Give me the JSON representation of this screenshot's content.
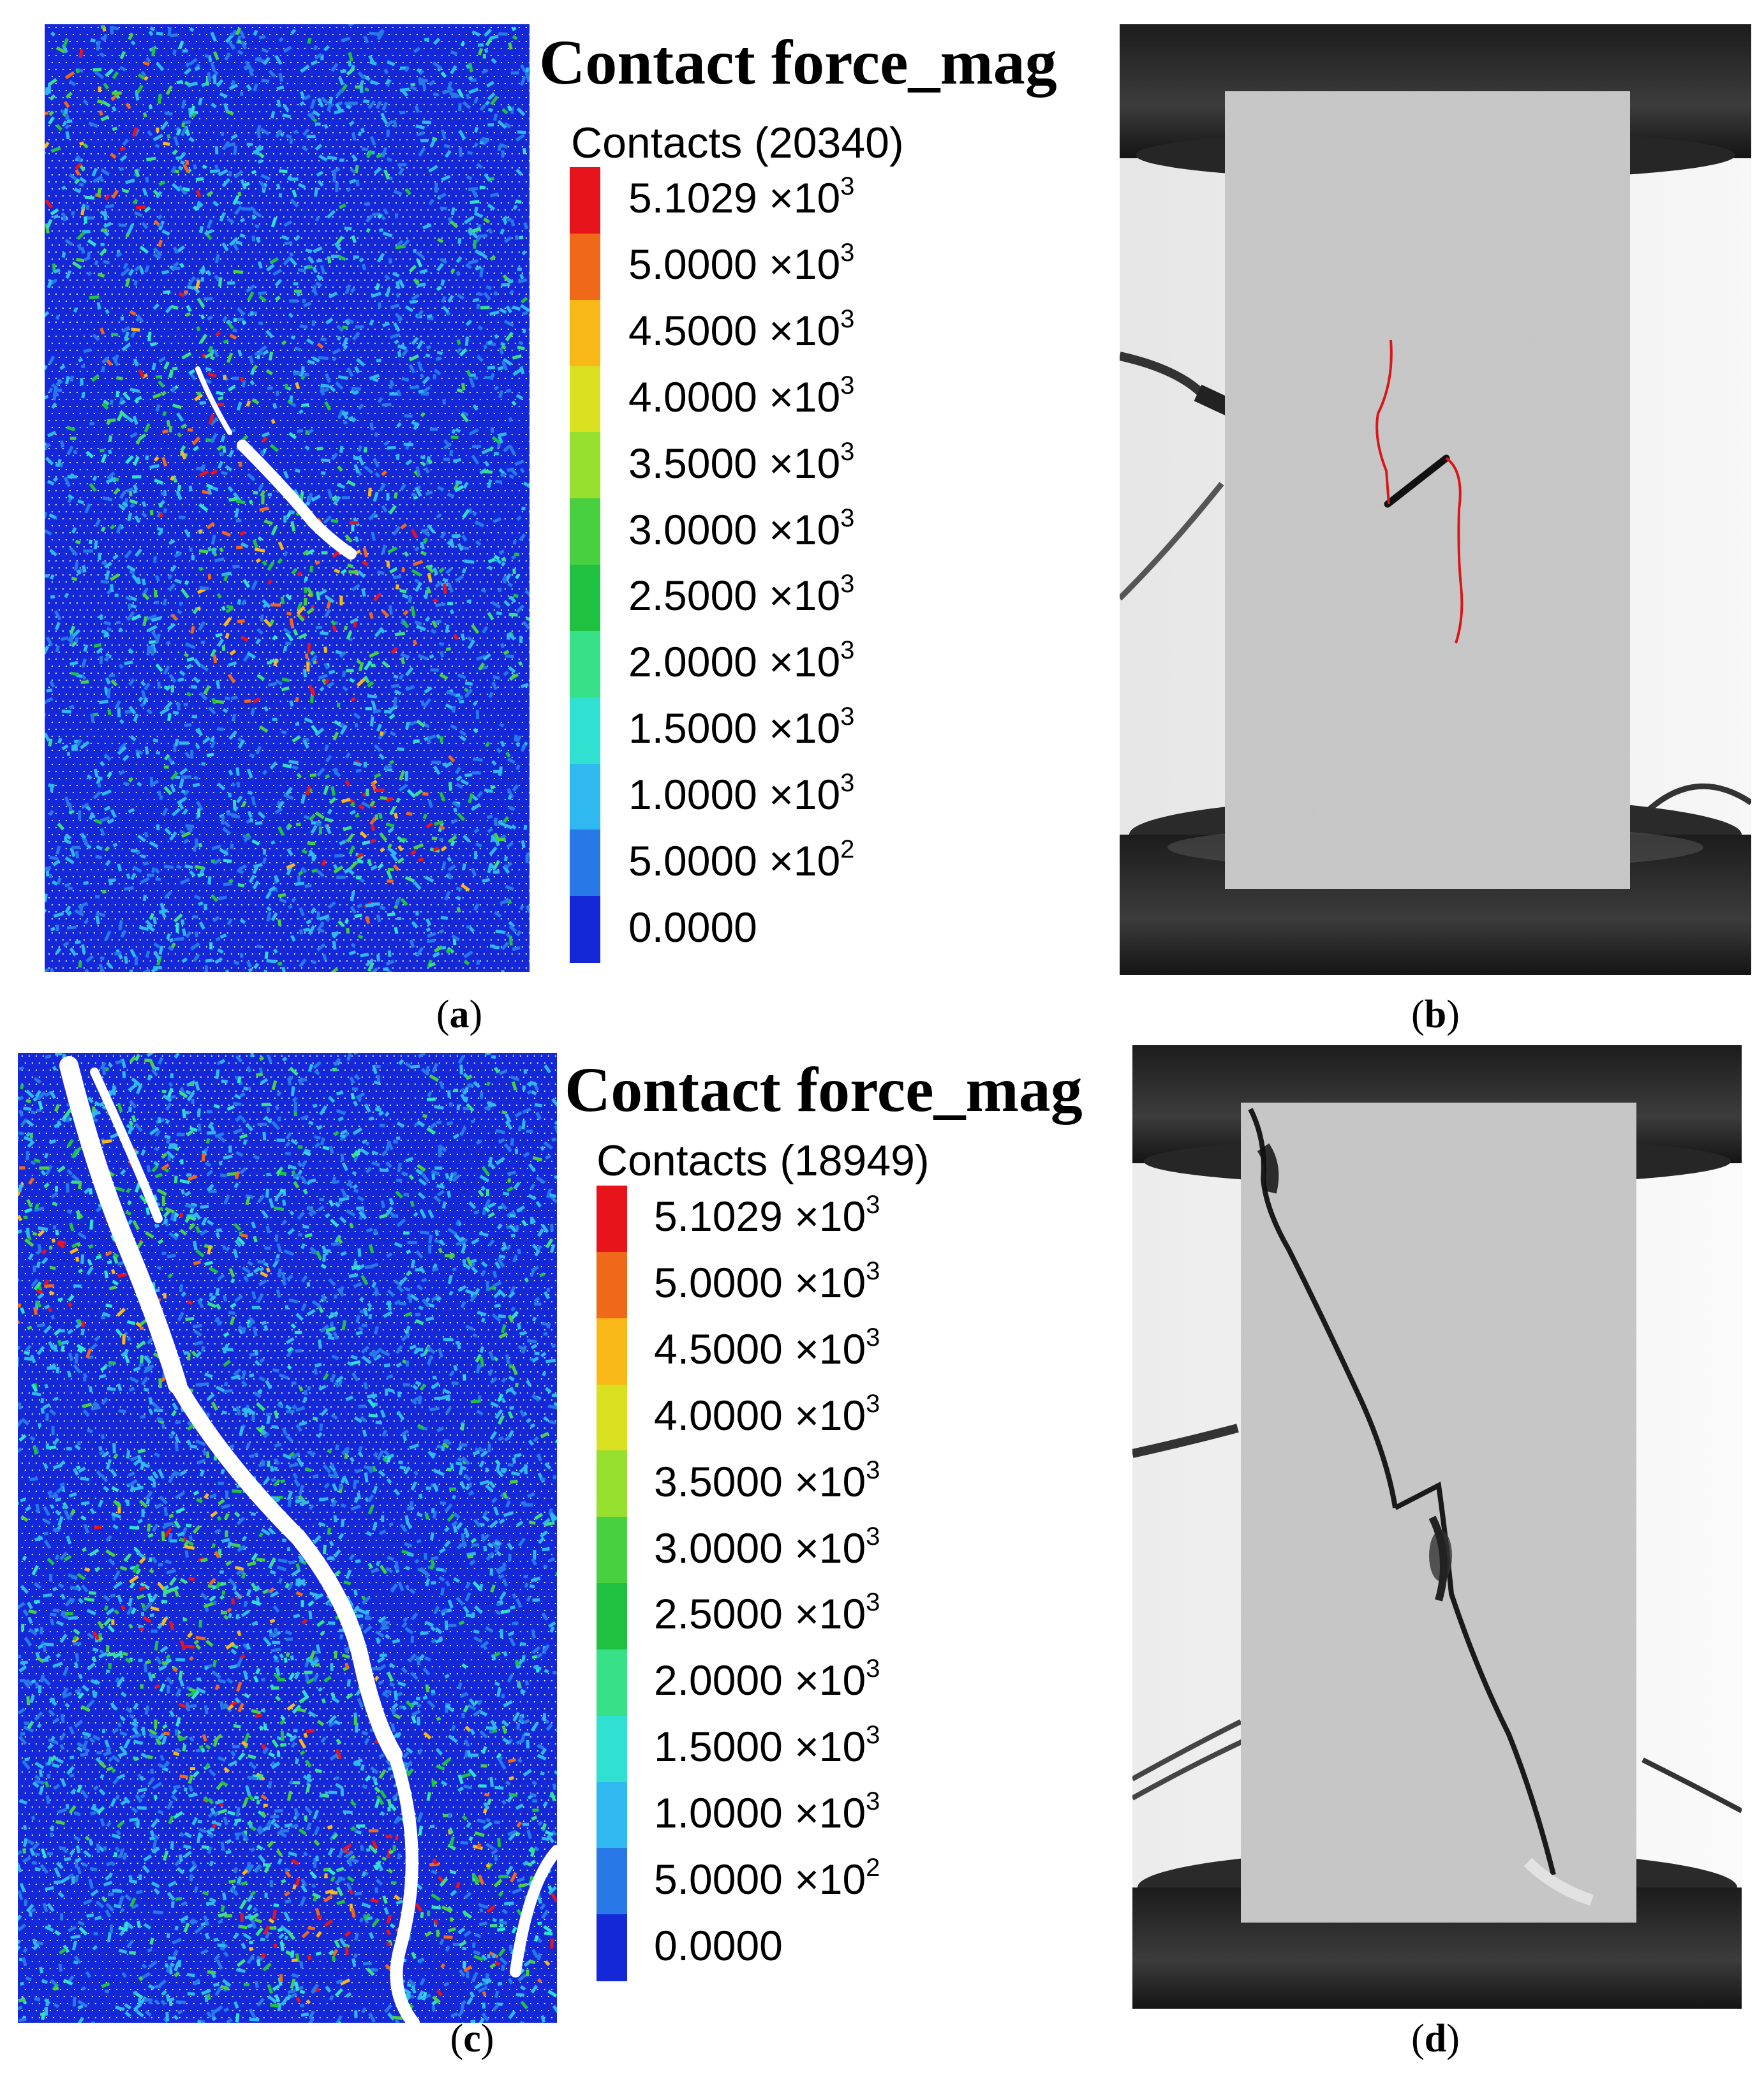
{
  "panels": [
    {
      "caption_letter": "a",
      "legend_title": "Contact force_mag",
      "legend_subtitle": "Contacts (20340)",
      "legend_values": [
        {
          "mant": "5.1029",
          "base": "×10",
          "exp": "3"
        },
        {
          "mant": "5.0000",
          "base": "×10",
          "exp": "3"
        },
        {
          "mant": "4.5000",
          "base": "×10",
          "exp": "3"
        },
        {
          "mant": "4.0000",
          "base": "×10",
          "exp": "3"
        },
        {
          "mant": "3.5000",
          "base": "×10",
          "exp": "3"
        },
        {
          "mant": "3.0000",
          "base": "×10",
          "exp": "3"
        },
        {
          "mant": "2.5000",
          "base": "×10",
          "exp": "3"
        },
        {
          "mant": "2.0000",
          "base": "×10",
          "exp": "3"
        },
        {
          "mant": "1.5000",
          "base": "×10",
          "exp": "3"
        },
        {
          "mant": "1.0000",
          "base": "×10",
          "exp": "3"
        },
        {
          "mant": "5.0000",
          "base": "×10",
          "exp": "2"
        },
        {
          "mant": "0.0000",
          "base": "",
          "exp": ""
        }
      ]
    },
    {
      "caption_letter": "b"
    },
    {
      "caption_letter": "c",
      "legend_title": "Contact force_mag",
      "legend_subtitle": "Contacts (18949)",
      "legend_values": [
        {
          "mant": "5.1029",
          "base": "×10",
          "exp": "3"
        },
        {
          "mant": "5.0000",
          "base": "×10",
          "exp": "3"
        },
        {
          "mant": "4.5000",
          "base": "×10",
          "exp": "3"
        },
        {
          "mant": "4.0000",
          "base": "×10",
          "exp": "3"
        },
        {
          "mant": "3.5000",
          "base": "×10",
          "exp": "3"
        },
        {
          "mant": "3.0000",
          "base": "×10",
          "exp": "3"
        },
        {
          "mant": "2.5000",
          "base": "×10",
          "exp": "3"
        },
        {
          "mant": "2.0000",
          "base": "×10",
          "exp": "3"
        },
        {
          "mant": "1.5000",
          "base": "×10",
          "exp": "3"
        },
        {
          "mant": "1.0000",
          "base": "×10",
          "exp": "3"
        },
        {
          "mant": "5.0000",
          "base": "×10",
          "exp": "2"
        },
        {
          "mant": "0.0000",
          "base": "",
          "exp": ""
        }
      ]
    },
    {
      "caption_letter": "d"
    }
  ],
  "legend_colors": [
    "#e8141c",
    "#f0681a",
    "#f8b818",
    "#d8e020",
    "#98e030",
    "#48d040",
    "#20c040",
    "#38e088",
    "#30e0d0",
    "#30b8f0",
    "#2878e8",
    "#1428d8"
  ]
}
